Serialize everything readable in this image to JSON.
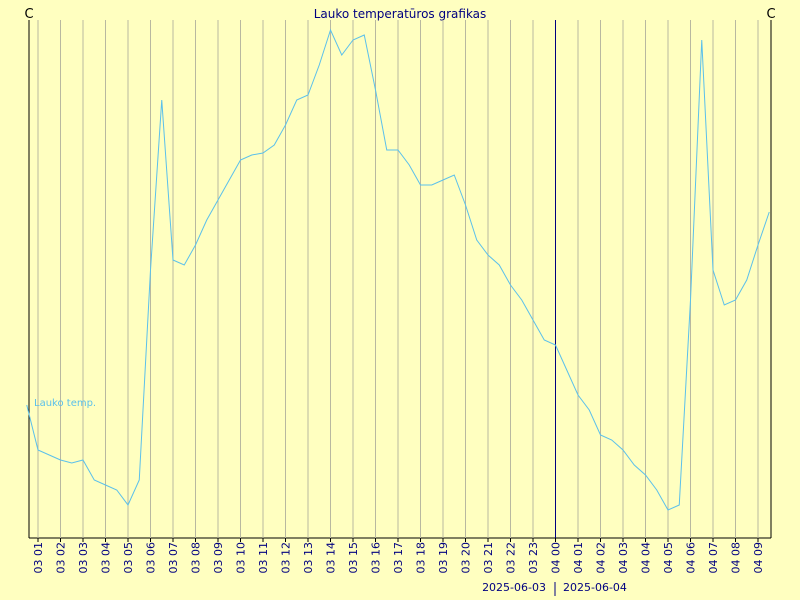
{
  "chart_data": {
    "type": "line",
    "title": "Lauko temperatūros grafikas",
    "unit_left": "C",
    "unit_right": "C",
    "categories": [
      null,
      "03 01",
      null,
      "03 02",
      null,
      "03 03",
      null,
      "03 04",
      null,
      "03 05",
      null,
      "03 06",
      null,
      "03 07",
      null,
      "03 08",
      null,
      "03 09",
      null,
      "03 10",
      null,
      "03 11",
      null,
      "03 12",
      null,
      "03 13",
      null,
      "03 14",
      null,
      "03 15",
      null,
      "03 16",
      null,
      "03 17",
      null,
      "03 18",
      null,
      "03 19",
      null,
      "03 20",
      null,
      "03 21",
      null,
      "03 22",
      null,
      "03 23",
      null,
      "04 00",
      null,
      "04 01",
      null,
      "04 02",
      null,
      "04 03",
      null,
      "04 04",
      null,
      "04 05",
      null,
      "04 06",
      null,
      "04 07",
      null,
      "04 08",
      null,
      "04 09",
      null
    ],
    "series": [
      {
        "name": "Lauko temp.",
        "color": "#5bc0eb",
        "values": [
          13.5,
          9,
          8.5,
          8,
          7.7,
          8,
          6,
          5.5,
          5,
          3.5,
          6,
          27,
          44,
          28,
          27.5,
          29.5,
          32,
          34,
          36,
          38,
          38.5,
          38.7,
          39.5,
          41.5,
          44,
          44.5,
          47.5,
          51,
          48.5,
          50,
          50.5,
          45,
          39,
          39,
          37.5,
          35.5,
          35.5,
          36,
          36.5,
          33.5,
          30,
          28.5,
          27.5,
          25.5,
          24,
          22,
          20,
          19.5,
          17,
          14.5,
          13,
          10.5,
          10,
          9,
          7.5,
          6.5,
          5,
          3,
          3.5,
          24,
          50,
          27,
          23.5,
          24,
          26,
          29.5,
          32.8
        ]
      }
    ],
    "date_labels": [
      "2025-06-03",
      "2025-06-04"
    ],
    "grid": true
  }
}
